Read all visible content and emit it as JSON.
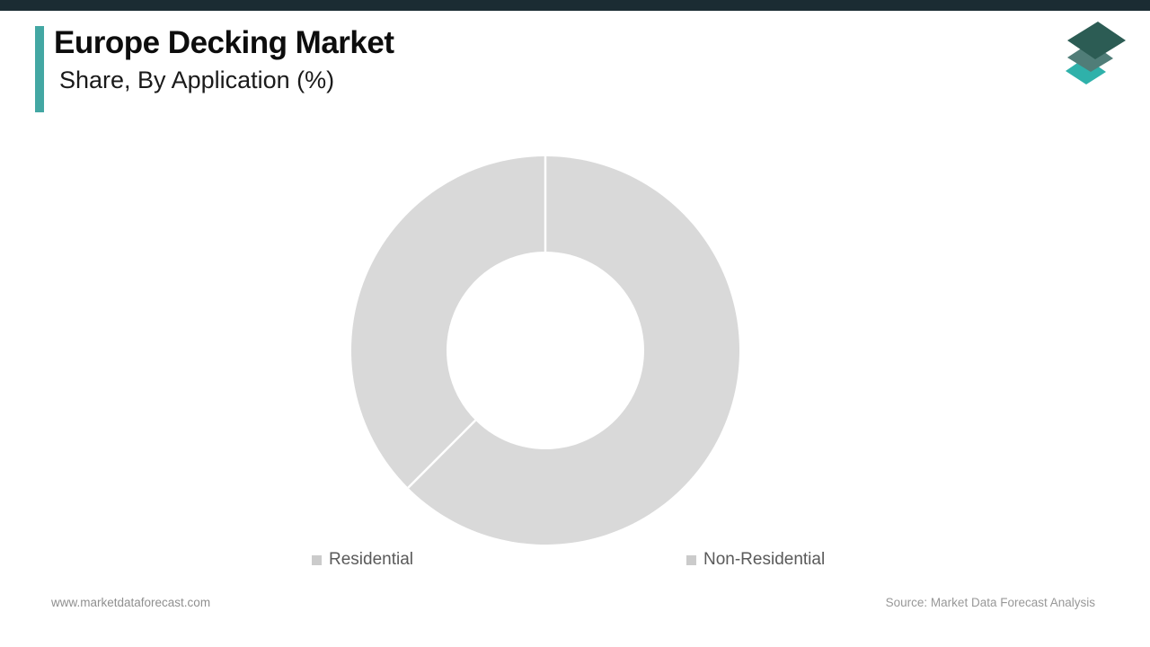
{
  "page": {
    "title": "Europe Decking Market",
    "subtitle": "Share, By Application (%)",
    "accent_color": "#43a7a3",
    "top_bar_color": "#1b2c33",
    "background_color": "#ffffff"
  },
  "chart_data": {
    "type": "pie",
    "donut": true,
    "title": "Europe Decking Market Share, By Application (%)",
    "categories": [
      "Residential",
      "Non-Residential"
    ],
    "values": [
      62.5,
      37.5
    ],
    "unit": "%",
    "start_angle_deg": 0,
    "direction": "clockwise",
    "slice_colors": [
      "#d9d9d9",
      "#d9d9d9"
    ],
    "divider_color": "#ffffff",
    "inner_radius_ratio": 0.51,
    "data_labels_shown": false,
    "legend_position": "bottom",
    "legend_marker_color": "#cbcbcb"
  },
  "legend": {
    "items": [
      {
        "label": "Residential"
      },
      {
        "label": "Non-Residential"
      }
    ]
  },
  "footer": {
    "website": "www.marketdataforecast.com",
    "source": "Source: Market Data Forecast Analysis"
  },
  "logo": {
    "name": "Market Data Forecast logo",
    "layer_colors": {
      "top": "#2c5c54",
      "middle": "#507d78",
      "bottom": "#2fb1aa"
    }
  }
}
